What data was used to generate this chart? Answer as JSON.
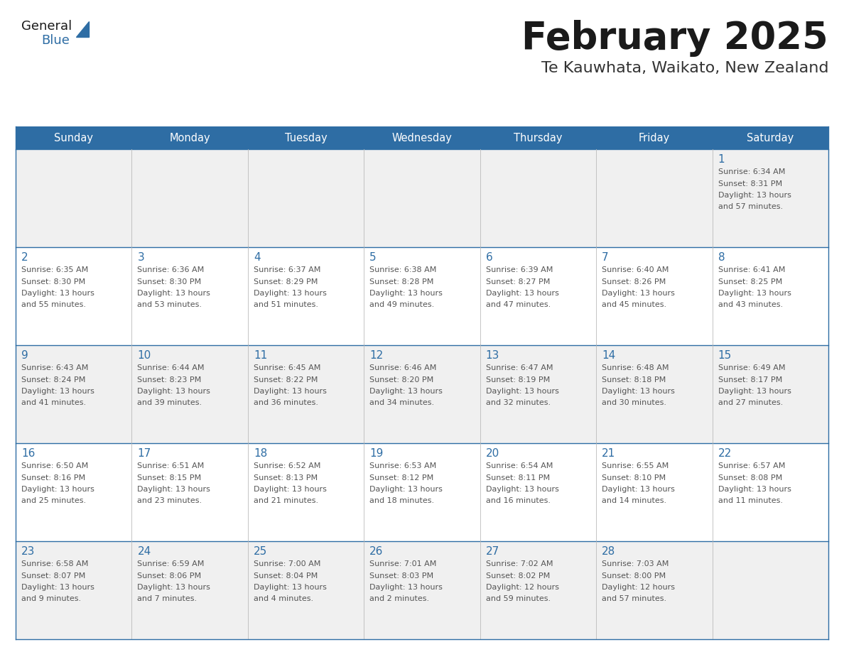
{
  "title": "February 2025",
  "subtitle": "Te Kauwhata, Waikato, New Zealand",
  "header_bg_color": "#2E6DA4",
  "header_text_color": "#FFFFFF",
  "border_color": "#2E6DA4",
  "title_color": "#1a1a1a",
  "subtitle_color": "#333333",
  "day_number_color": "#2E6DA4",
  "cell_text_color": "#555555",
  "row_bg_colors": [
    "#F0F0F0",
    "#FFFFFF",
    "#F0F0F0",
    "#FFFFFF",
    "#F0F0F0"
  ],
  "days_of_week": [
    "Sunday",
    "Monday",
    "Tuesday",
    "Wednesday",
    "Thursday",
    "Friday",
    "Saturday"
  ],
  "weeks": [
    [
      {
        "day": 0,
        "info": ""
      },
      {
        "day": 0,
        "info": ""
      },
      {
        "day": 0,
        "info": ""
      },
      {
        "day": 0,
        "info": ""
      },
      {
        "day": 0,
        "info": ""
      },
      {
        "day": 0,
        "info": ""
      },
      {
        "day": 1,
        "info": "Sunrise: 6:34 AM\nSunset: 8:31 PM\nDaylight: 13 hours\nand 57 minutes."
      }
    ],
    [
      {
        "day": 2,
        "info": "Sunrise: 6:35 AM\nSunset: 8:30 PM\nDaylight: 13 hours\nand 55 minutes."
      },
      {
        "day": 3,
        "info": "Sunrise: 6:36 AM\nSunset: 8:30 PM\nDaylight: 13 hours\nand 53 minutes."
      },
      {
        "day": 4,
        "info": "Sunrise: 6:37 AM\nSunset: 8:29 PM\nDaylight: 13 hours\nand 51 minutes."
      },
      {
        "day": 5,
        "info": "Sunrise: 6:38 AM\nSunset: 8:28 PM\nDaylight: 13 hours\nand 49 minutes."
      },
      {
        "day": 6,
        "info": "Sunrise: 6:39 AM\nSunset: 8:27 PM\nDaylight: 13 hours\nand 47 minutes."
      },
      {
        "day": 7,
        "info": "Sunrise: 6:40 AM\nSunset: 8:26 PM\nDaylight: 13 hours\nand 45 minutes."
      },
      {
        "day": 8,
        "info": "Sunrise: 6:41 AM\nSunset: 8:25 PM\nDaylight: 13 hours\nand 43 minutes."
      }
    ],
    [
      {
        "day": 9,
        "info": "Sunrise: 6:43 AM\nSunset: 8:24 PM\nDaylight: 13 hours\nand 41 minutes."
      },
      {
        "day": 10,
        "info": "Sunrise: 6:44 AM\nSunset: 8:23 PM\nDaylight: 13 hours\nand 39 minutes."
      },
      {
        "day": 11,
        "info": "Sunrise: 6:45 AM\nSunset: 8:22 PM\nDaylight: 13 hours\nand 36 minutes."
      },
      {
        "day": 12,
        "info": "Sunrise: 6:46 AM\nSunset: 8:20 PM\nDaylight: 13 hours\nand 34 minutes."
      },
      {
        "day": 13,
        "info": "Sunrise: 6:47 AM\nSunset: 8:19 PM\nDaylight: 13 hours\nand 32 minutes."
      },
      {
        "day": 14,
        "info": "Sunrise: 6:48 AM\nSunset: 8:18 PM\nDaylight: 13 hours\nand 30 minutes."
      },
      {
        "day": 15,
        "info": "Sunrise: 6:49 AM\nSunset: 8:17 PM\nDaylight: 13 hours\nand 27 minutes."
      }
    ],
    [
      {
        "day": 16,
        "info": "Sunrise: 6:50 AM\nSunset: 8:16 PM\nDaylight: 13 hours\nand 25 minutes."
      },
      {
        "day": 17,
        "info": "Sunrise: 6:51 AM\nSunset: 8:15 PM\nDaylight: 13 hours\nand 23 minutes."
      },
      {
        "day": 18,
        "info": "Sunrise: 6:52 AM\nSunset: 8:13 PM\nDaylight: 13 hours\nand 21 minutes."
      },
      {
        "day": 19,
        "info": "Sunrise: 6:53 AM\nSunset: 8:12 PM\nDaylight: 13 hours\nand 18 minutes."
      },
      {
        "day": 20,
        "info": "Sunrise: 6:54 AM\nSunset: 8:11 PM\nDaylight: 13 hours\nand 16 minutes."
      },
      {
        "day": 21,
        "info": "Sunrise: 6:55 AM\nSunset: 8:10 PM\nDaylight: 13 hours\nand 14 minutes."
      },
      {
        "day": 22,
        "info": "Sunrise: 6:57 AM\nSunset: 8:08 PM\nDaylight: 13 hours\nand 11 minutes."
      }
    ],
    [
      {
        "day": 23,
        "info": "Sunrise: 6:58 AM\nSunset: 8:07 PM\nDaylight: 13 hours\nand 9 minutes."
      },
      {
        "day": 24,
        "info": "Sunrise: 6:59 AM\nSunset: 8:06 PM\nDaylight: 13 hours\nand 7 minutes."
      },
      {
        "day": 25,
        "info": "Sunrise: 7:00 AM\nSunset: 8:04 PM\nDaylight: 13 hours\nand 4 minutes."
      },
      {
        "day": 26,
        "info": "Sunrise: 7:01 AM\nSunset: 8:03 PM\nDaylight: 13 hours\nand 2 minutes."
      },
      {
        "day": 27,
        "info": "Sunrise: 7:02 AM\nSunset: 8:02 PM\nDaylight: 12 hours\nand 59 minutes."
      },
      {
        "day": 28,
        "info": "Sunrise: 7:03 AM\nSunset: 8:00 PM\nDaylight: 12 hours\nand 57 minutes."
      },
      {
        "day": 0,
        "info": ""
      }
    ]
  ]
}
